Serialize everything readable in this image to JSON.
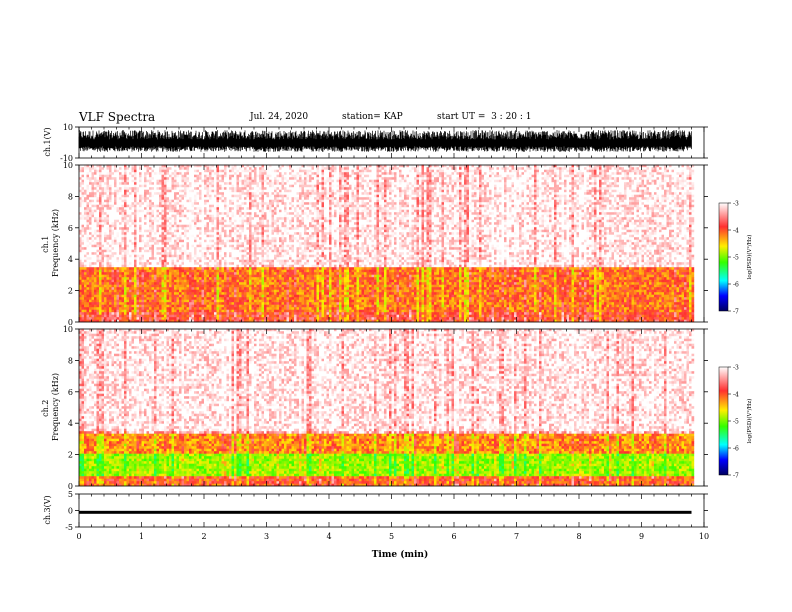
{
  "header": {
    "title": "VLF Spectra",
    "date": "Jul. 24, 2020",
    "station": "station= KAP",
    "start": "start UT =  3 : 20 : 1"
  },
  "chart_data": [
    {
      "type": "line",
      "panel": "waveform-ch1",
      "ylabel": "ch.1(V)",
      "ylim": [
        -10,
        10
      ],
      "yticks": [
        10,
        -10
      ],
      "xlim": [
        0,
        10
      ],
      "trace_color": "#000000",
      "signal": "dense noise spanning roughly -7 to +8 V over 0–9.8 min"
    },
    {
      "type": "heatmap",
      "panel": "spectrogram-ch1",
      "ylabel": "ch.1\nFrequency (kHz)",
      "ylim": [
        0,
        10
      ],
      "yticks": [
        0,
        2,
        4,
        6,
        8,
        10
      ],
      "xlim": [
        0,
        10
      ],
      "colorbar": {
        "label": "log(PSD)(V²/Hz)",
        "ticks": [
          -3,
          -4,
          -5,
          -6,
          -7
        ],
        "range": [
          -7,
          -3
        ]
      },
      "bands": [
        {
          "freq_khz": [
            0,
            0.5
          ],
          "level": -3.6
        },
        {
          "freq_khz": [
            0.5,
            3.5
          ],
          "level": -3.8
        },
        {
          "freq_khz": [
            3.5,
            10
          ],
          "level": -3.2
        }
      ]
    },
    {
      "type": "heatmap",
      "panel": "spectrogram-ch2",
      "ylabel": "ch.2\nFrequency (kHz)",
      "ylim": [
        0,
        10
      ],
      "yticks": [
        0,
        2,
        4,
        6,
        8,
        10
      ],
      "xlim": [
        0,
        10
      ],
      "colorbar": {
        "label": "log(PSD)(V²/Hz)",
        "ticks": [
          -3,
          -4,
          -5,
          -6,
          -7
        ],
        "range": [
          -7,
          -3
        ]
      },
      "bands": [
        {
          "freq_khz": [
            0,
            0.6
          ],
          "level": -3.7
        },
        {
          "freq_khz": [
            0.6,
            2.0
          ],
          "level": -4.5
        },
        {
          "freq_khz": [
            2.0,
            3.2
          ],
          "level": -3.9
        },
        {
          "freq_khz": [
            3.2,
            10
          ],
          "level": -3.2
        }
      ]
    },
    {
      "type": "line",
      "panel": "waveform-ch3",
      "ylabel": "ch.3(V)",
      "ylim": [
        -5,
        5
      ],
      "yticks": [
        5,
        0,
        -5
      ],
      "xlim": [
        0,
        10
      ],
      "xlabel": "Time (min)",
      "xticks": [
        0,
        1,
        2,
        3,
        4,
        5,
        6,
        7,
        8,
        9,
        10
      ],
      "trace_color": "#000000",
      "signal": "narrow band around -0.5 V (about -1 to 0 V) over 0–9.8 min"
    }
  ],
  "colors": {
    "colormap": [
      "#ffffff",
      "#ff3a3a",
      "#ffee00",
      "#33ff00",
      "#00ffff",
      "#0000ff",
      "#000060"
    ]
  }
}
